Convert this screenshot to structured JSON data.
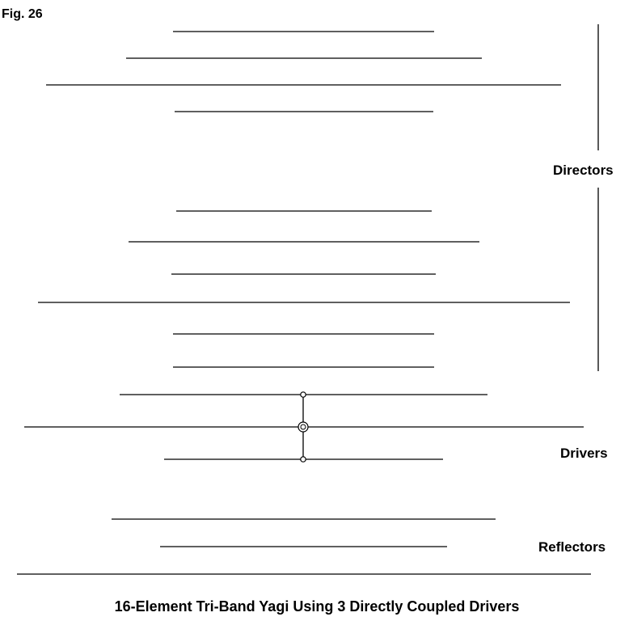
{
  "figure_label": "Fig. 26",
  "caption": "16-Element Tri-Band Yagi Using 3 Directly Coupled Drivers",
  "groups": {
    "directors": "Directors",
    "drivers": "Drivers",
    "reflectors": "Reflectors"
  },
  "elements": [
    {
      "group": "directors"
    },
    {
      "group": "directors"
    },
    {
      "group": "directors"
    },
    {
      "group": "directors"
    },
    {
      "group": "directors"
    },
    {
      "group": "directors"
    },
    {
      "group": "directors"
    },
    {
      "group": "directors"
    },
    {
      "group": "directors"
    },
    {
      "group": "directors"
    },
    {
      "group": "drivers"
    },
    {
      "group": "drivers"
    },
    {
      "group": "drivers"
    },
    {
      "group": "reflectors"
    },
    {
      "group": "reflectors"
    },
    {
      "group": "reflectors"
    }
  ]
}
